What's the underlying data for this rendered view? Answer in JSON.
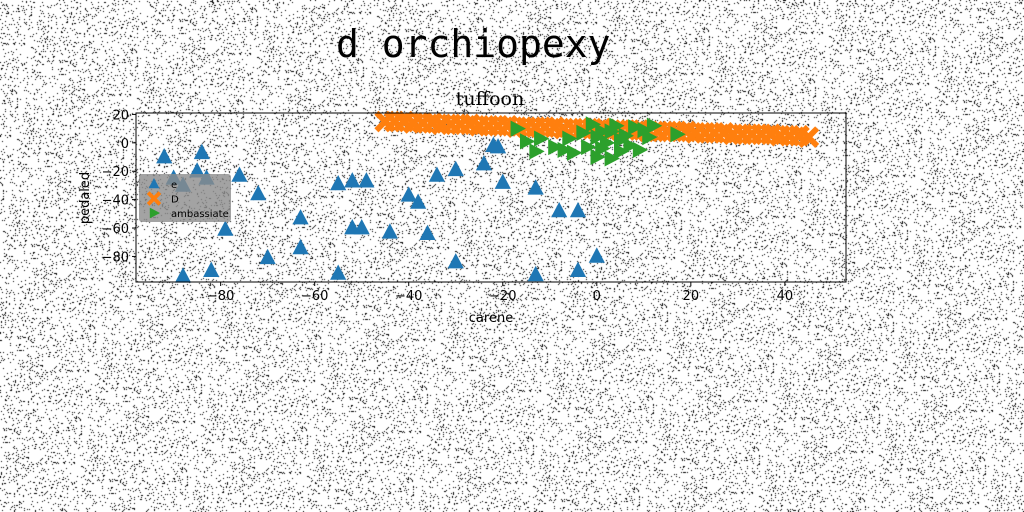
{
  "figure": {
    "suptitle": "d orchiopexy"
  },
  "colors": {
    "series1": "#1f77b4",
    "series2": "#ff7f0e",
    "series3": "#2ca02c",
    "legend_bg": "#8c8c8c"
  },
  "chart_data": {
    "type": "scatter",
    "title": "tuffoon",
    "xlabel": "carene",
    "ylabel": "pedaled",
    "xlim": [
      -98,
      53
    ],
    "ylim": [
      -98,
      21
    ],
    "xticks": [
      -80,
      -60,
      -40,
      -20,
      0,
      20,
      40
    ],
    "yticks": [
      20,
      0,
      -20,
      -40,
      -60,
      -80
    ],
    "grid": false,
    "legend_position": "center-left",
    "series": [
      {
        "name": "e",
        "marker": "triangle-up",
        "color": "#1f77b4",
        "points": [
          [
            -92,
            -10
          ],
          [
            -84,
            -7
          ],
          [
            -90,
            -25
          ],
          [
            -88,
            -30
          ],
          [
            -85,
            -20
          ],
          [
            -83,
            -25
          ],
          [
            -76,
            -23
          ],
          [
            -72,
            -36
          ],
          [
            -79,
            -61
          ],
          [
            -82,
            -90
          ],
          [
            -70,
            -81
          ],
          [
            -88,
            -94
          ],
          [
            -63,
            -53
          ],
          [
            -63,
            -74
          ],
          [
            -55,
            -29
          ],
          [
            -52,
            -27
          ],
          [
            -49,
            -27
          ],
          [
            -55,
            -92
          ],
          [
            -52,
            -60
          ],
          [
            -50,
            -60
          ],
          [
            -44,
            -63
          ],
          [
            -40,
            -37
          ],
          [
            -38,
            -42
          ],
          [
            -36,
            -64
          ],
          [
            -34,
            -23
          ],
          [
            -30,
            -19
          ],
          [
            -30,
            -84
          ],
          [
            -24,
            -15
          ],
          [
            -22,
            -2
          ],
          [
            -21,
            -3
          ],
          [
            -20,
            -28
          ],
          [
            -13,
            -32
          ],
          [
            -8,
            -48
          ],
          [
            -4,
            -48
          ],
          [
            -13,
            -93
          ],
          [
            -4,
            -90
          ],
          [
            0,
            -80
          ]
        ]
      },
      {
        "name": "D",
        "marker": "x",
        "color": "#ff7f0e",
        "points": [
          [
            -45,
            15
          ],
          [
            -43,
            15
          ],
          [
            -41,
            15
          ],
          [
            -39,
            14
          ],
          [
            -37,
            14
          ],
          [
            -35,
            14
          ],
          [
            -33,
            13
          ],
          [
            -31,
            13
          ],
          [
            -29,
            13
          ],
          [
            -27,
            13
          ],
          [
            -25,
            12
          ],
          [
            -23,
            12
          ],
          [
            -21,
            12
          ],
          [
            -19,
            12
          ],
          [
            -17,
            11
          ],
          [
            -15,
            11
          ],
          [
            -13,
            11
          ],
          [
            -11,
            11
          ],
          [
            -9,
            11
          ],
          [
            -7,
            10
          ],
          [
            -5,
            10
          ],
          [
            -3,
            10
          ],
          [
            -1,
            10
          ],
          [
            1,
            10
          ],
          [
            3,
            9
          ],
          [
            5,
            9
          ],
          [
            7,
            9
          ],
          [
            9,
            9
          ],
          [
            11,
            8
          ],
          [
            13,
            8
          ],
          [
            15,
            8
          ],
          [
            17,
            8
          ],
          [
            19,
            8
          ],
          [
            21,
            7
          ],
          [
            23,
            7
          ],
          [
            25,
            7
          ],
          [
            27,
            7
          ],
          [
            29,
            6
          ],
          [
            31,
            6
          ],
          [
            33,
            6
          ],
          [
            35,
            6
          ],
          [
            37,
            6
          ],
          [
            39,
            5
          ],
          [
            41,
            5
          ],
          [
            43,
            5
          ],
          [
            45,
            4
          ]
        ]
      },
      {
        "name": "ambassiate",
        "marker": "triangle-right",
        "color": "#2ca02c",
        "points": [
          [
            -17,
            10
          ],
          [
            -15,
            1
          ],
          [
            -13,
            -6
          ],
          [
            -12,
            3
          ],
          [
            -9,
            -3
          ],
          [
            -7,
            -5
          ],
          [
            -6,
            3
          ],
          [
            -5,
            -7
          ],
          [
            -3,
            7
          ],
          [
            -2,
            -3
          ],
          [
            -1,
            13
          ],
          [
            0,
            -10
          ],
          [
            0,
            4
          ],
          [
            1,
            8
          ],
          [
            1,
            -4
          ],
          [
            2,
            0
          ],
          [
            3,
            -11
          ],
          [
            3,
            8
          ],
          [
            4,
            12
          ],
          [
            5,
            2
          ],
          [
            5,
            -6
          ],
          [
            6,
            5
          ],
          [
            7,
            -2
          ],
          [
            8,
            11
          ],
          [
            9,
            -5
          ],
          [
            10,
            9
          ],
          [
            11,
            4
          ],
          [
            12,
            12
          ],
          [
            17,
            6
          ]
        ]
      }
    ]
  }
}
